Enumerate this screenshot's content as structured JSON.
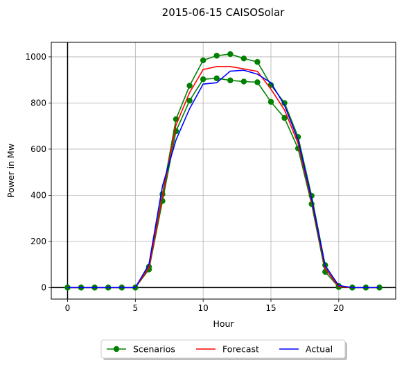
{
  "chart_data": {
    "type": "line",
    "title": "2015-06-15 CAISOSolar",
    "xlabel": "Hour",
    "ylabel": "Power in Mw",
    "xlim": [
      -1.2,
      24.2
    ],
    "ylim": [
      -50,
      1063
    ],
    "xticks": [
      0,
      5,
      10,
      15,
      20
    ],
    "yticks": [
      0,
      200,
      400,
      600,
      800,
      1000
    ],
    "grid": true,
    "legend_position": "bottom-center-outside",
    "x": [
      0,
      1,
      2,
      3,
      4,
      5,
      6,
      7,
      8,
      9,
      10,
      11,
      12,
      13,
      14,
      15,
      16,
      17,
      18,
      19,
      20,
      21,
      22,
      23
    ],
    "series": [
      {
        "name": "Scenarios",
        "color": "#008000",
        "marker": "circle",
        "values": [
          0,
          0,
          0,
          0,
          0,
          0,
          90,
          405,
          730,
          875,
          985,
          1005,
          1012,
          993,
          978,
          878,
          800,
          653,
          398,
          97,
          7,
          0,
          0,
          0
        ]
      },
      {
        "name": "",
        "color": "#008000",
        "marker": "circle",
        "values": [
          0,
          0,
          0,
          0,
          0,
          0,
          78,
          375,
          678,
          810,
          903,
          907,
          898,
          893,
          890,
          805,
          735,
          603,
          362,
          68,
          2,
          0,
          0,
          0
        ]
      },
      {
        "name": "Forecast",
        "color": "#ff0000",
        "marker": "none",
        "values": [
          0,
          0,
          0,
          0,
          0,
          0,
          85,
          395,
          705,
          845,
          945,
          958,
          958,
          948,
          937,
          860,
          770,
          625,
          375,
          82,
          4,
          0,
          0,
          0
        ]
      },
      {
        "name": "Actual",
        "color": "#0000ff",
        "marker": "none",
        "values": [
          0,
          0,
          0,
          0,
          0,
          0,
          100,
          440,
          640,
          775,
          882,
          888,
          938,
          942,
          925,
          888,
          790,
          640,
          385,
          93,
          9,
          0,
          0,
          0
        ]
      }
    ]
  }
}
